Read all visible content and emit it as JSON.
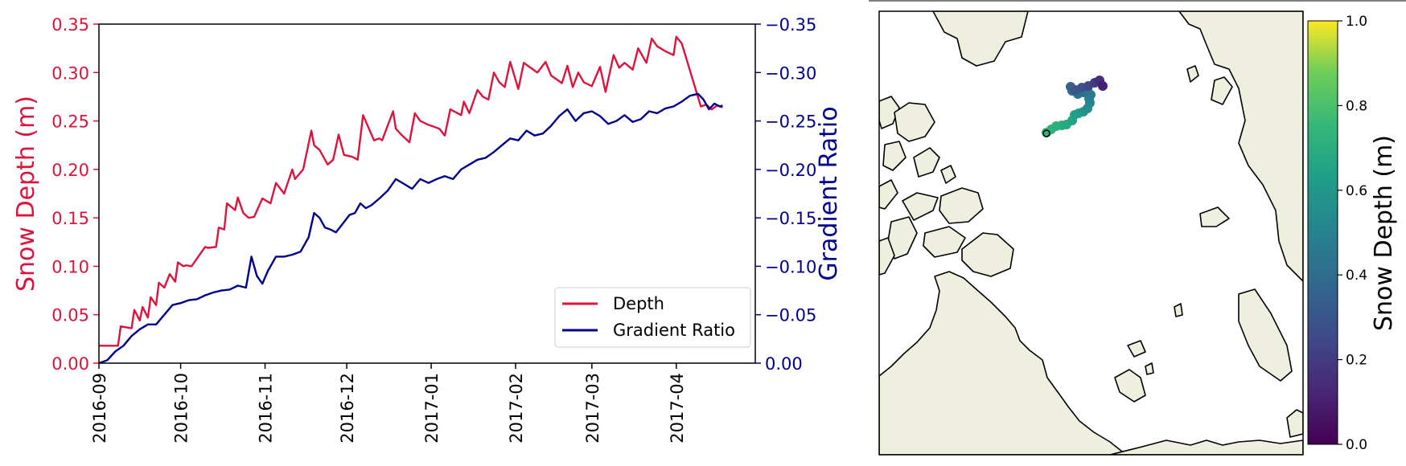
{
  "colors": {
    "depth": "#dc143c",
    "gradient": "#00008b",
    "land": "#efefdf",
    "coast": "#000000"
  },
  "chart_data": [
    {
      "type": "line",
      "x_type": "date",
      "xlim": [
        "2016-09-01",
        "2017-04-30"
      ],
      "x_ticks": [
        "2016-09",
        "2016-10",
        "2016-11",
        "2016-12",
        "2017-01",
        "2017-02",
        "2017-03",
        "2017-04"
      ],
      "y_left": {
        "label": "Snow Depth (m)",
        "lim": [
          0,
          0.35
        ],
        "ticks": [
          "0.00",
          "0.05",
          "0.10",
          "0.15",
          "0.20",
          "0.25",
          "0.30",
          "0.35"
        ]
      },
      "y_right": {
        "label": "Gradient Ratio",
        "lim": [
          0,
          -0.35
        ],
        "inverted": true,
        "ticks": [
          "0.00",
          "−0.05",
          "−0.10",
          "−0.15",
          "−0.20",
          "−0.25",
          "−0.30",
          "−0.35"
        ]
      },
      "legend": {
        "position": "lower-right",
        "entries": [
          "Depth",
          "Gradient Ratio"
        ]
      },
      "series": [
        {
          "name": "Depth",
          "axis": "left",
          "x": [
            "2016-09-01",
            "2016-09-08",
            "2016-09-09",
            "2016-09-13",
            "2016-09-14",
            "2016-09-16",
            "2016-09-17",
            "2016-09-19",
            "2016-09-20",
            "2016-09-22",
            "2016-09-23",
            "2016-09-25",
            "2016-09-27",
            "2016-09-29",
            "2016-09-30",
            "2016-10-02",
            "2016-10-03",
            "2016-10-05",
            "2016-10-10",
            "2016-10-11",
            "2016-10-14",
            "2016-10-15",
            "2016-10-17",
            "2016-10-18",
            "2016-10-21",
            "2016-10-22",
            "2016-10-24",
            "2016-10-26",
            "2016-10-28",
            "2016-10-31",
            "2016-11-03",
            "2016-11-05",
            "2016-11-08",
            "2016-11-11",
            "2016-11-12",
            "2016-11-15",
            "2016-11-18",
            "2016-11-19",
            "2016-11-21",
            "2016-11-24",
            "2016-11-26",
            "2016-11-28",
            "2016-11-30",
            "2016-12-03",
            "2016-12-05",
            "2016-12-07",
            "2016-12-11",
            "2016-12-13",
            "2016-12-14",
            "2016-12-18",
            "2016-12-19",
            "2016-12-21",
            "2016-12-24",
            "2016-12-26",
            "2016-12-28",
            "2016-12-31",
            "2017-01-02",
            "2017-01-04",
            "2017-01-06",
            "2017-01-08",
            "2017-01-12",
            "2017-01-13",
            "2017-01-15",
            "2017-01-18",
            "2017-01-20",
            "2017-01-22",
            "2017-01-24",
            "2017-01-26",
            "2017-01-28",
            "2017-01-30",
            "2017-02-02",
            "2017-02-04",
            "2017-02-06",
            "2017-02-09",
            "2017-02-12",
            "2017-02-14",
            "2017-02-18",
            "2017-02-20",
            "2017-02-22",
            "2017-02-24",
            "2017-02-26",
            "2017-03-01",
            "2017-03-04",
            "2017-03-06",
            "2017-03-09",
            "2017-03-11",
            "2017-03-13",
            "2017-03-16",
            "2017-03-18",
            "2017-03-21",
            "2017-03-23",
            "2017-03-25",
            "2017-03-28",
            "2017-03-31",
            "2017-04-01",
            "2017-04-03",
            "2017-04-10",
            "2017-04-12",
            "2017-04-14",
            "2017-04-16",
            "2017-04-18"
          ],
          "y": [
            0.018,
            0.018,
            0.038,
            0.036,
            0.055,
            0.044,
            0.058,
            0.047,
            0.068,
            0.06,
            0.083,
            0.078,
            0.092,
            0.084,
            0.104,
            0.1,
            0.101,
            0.1,
            0.12,
            0.119,
            0.12,
            0.14,
            0.138,
            0.165,
            0.158,
            0.171,
            0.155,
            0.15,
            0.151,
            0.17,
            0.165,
            0.186,
            0.175,
            0.2,
            0.19,
            0.2,
            0.24,
            0.225,
            0.22,
            0.205,
            0.21,
            0.236,
            0.215,
            0.213,
            0.21,
            0.256,
            0.23,
            0.232,
            0.23,
            0.26,
            0.242,
            0.236,
            0.228,
            0.258,
            0.25,
            0.246,
            0.244,
            0.242,
            0.235,
            0.262,
            0.256,
            0.27,
            0.258,
            0.282,
            0.275,
            0.272,
            0.3,
            0.29,
            0.285,
            0.311,
            0.283,
            0.31,
            0.306,
            0.3,
            0.311,
            0.297,
            0.289,
            0.307,
            0.285,
            0.3,
            0.29,
            0.286,
            0.306,
            0.28,
            0.318,
            0.305,
            0.31,
            0.303,
            0.325,
            0.31,
            0.335,
            0.327,
            0.322,
            0.318,
            0.337,
            0.33,
            0.265,
            0.267,
            0.262,
            0.266,
            0.264
          ]
        },
        {
          "name": "Gradient Ratio",
          "axis": "right",
          "x": [
            "2016-09-01",
            "2016-09-04",
            "2016-09-07",
            "2016-09-10",
            "2016-09-13",
            "2016-09-16",
            "2016-09-19",
            "2016-09-22",
            "2016-09-25",
            "2016-09-28",
            "2016-10-01",
            "2016-10-04",
            "2016-10-07",
            "2016-10-10",
            "2016-10-13",
            "2016-10-16",
            "2016-10-19",
            "2016-10-22",
            "2016-10-25",
            "2016-10-27",
            "2016-10-29",
            "2016-10-31",
            "2016-11-02",
            "2016-11-05",
            "2016-11-08",
            "2016-11-11",
            "2016-11-14",
            "2016-11-17",
            "2016-11-19",
            "2016-11-21",
            "2016-11-23",
            "2016-11-25",
            "2016-11-27",
            "2016-11-29",
            "2016-12-02",
            "2016-12-04",
            "2016-12-06",
            "2016-12-08",
            "2016-12-10",
            "2016-12-13",
            "2016-12-16",
            "2016-12-19",
            "2016-12-22",
            "2016-12-25",
            "2016-12-28",
            "2016-12-31",
            "2017-01-03",
            "2017-01-06",
            "2017-01-09",
            "2017-01-12",
            "2017-01-15",
            "2017-01-18",
            "2017-01-21",
            "2017-01-24",
            "2017-01-27",
            "2017-01-30",
            "2017-02-02",
            "2017-02-05",
            "2017-02-08",
            "2017-02-11",
            "2017-02-14",
            "2017-02-17",
            "2017-02-20",
            "2017-02-23",
            "2017-02-26",
            "2017-03-01",
            "2017-03-04",
            "2017-03-07",
            "2017-03-10",
            "2017-03-13",
            "2017-03-16",
            "2017-03-19",
            "2017-03-22",
            "2017-03-25",
            "2017-03-28",
            "2017-03-31",
            "2017-04-03",
            "2017-04-06",
            "2017-04-09",
            "2017-04-11",
            "2017-04-13",
            "2017-04-15",
            "2017-04-17",
            "2017-04-18"
          ],
          "y": [
            0.0,
            -0.003,
            -0.012,
            -0.018,
            -0.028,
            -0.035,
            -0.04,
            -0.04,
            -0.05,
            -0.06,
            -0.062,
            -0.065,
            -0.066,
            -0.07,
            -0.073,
            -0.075,
            -0.076,
            -0.08,
            -0.078,
            -0.11,
            -0.09,
            -0.082,
            -0.095,
            -0.11,
            -0.11,
            -0.112,
            -0.115,
            -0.13,
            -0.155,
            -0.15,
            -0.14,
            -0.138,
            -0.135,
            -0.142,
            -0.153,
            -0.155,
            -0.165,
            -0.16,
            -0.163,
            -0.17,
            -0.178,
            -0.19,
            -0.185,
            -0.18,
            -0.19,
            -0.186,
            -0.19,
            -0.193,
            -0.19,
            -0.2,
            -0.205,
            -0.21,
            -0.212,
            -0.218,
            -0.225,
            -0.232,
            -0.23,
            -0.24,
            -0.235,
            -0.237,
            -0.245,
            -0.255,
            -0.262,
            -0.25,
            -0.258,
            -0.26,
            -0.255,
            -0.247,
            -0.25,
            -0.256,
            -0.249,
            -0.252,
            -0.26,
            -0.258,
            -0.263,
            -0.265,
            -0.27,
            -0.276,
            -0.278,
            -0.272,
            -0.262,
            -0.268,
            -0.265,
            -0.266
          ]
        }
      ]
    },
    {
      "type": "scatter",
      "projection": "north-polar-stereographic",
      "colorbar": {
        "label": "Snow Depth (m)",
        "lim": [
          0.0,
          1.0
        ],
        "ticks": [
          "0.0",
          "0.2",
          "0.4",
          "0.6",
          "0.8",
          "1.0"
        ],
        "colormap": "viridis"
      },
      "track": {
        "start_marker": "black-edged circle",
        "points": [
          {
            "value": 0.72
          },
          {
            "value": 0.71
          },
          {
            "value": 0.7
          },
          {
            "value": 0.68
          },
          {
            "value": 0.66
          },
          {
            "value": 0.64
          },
          {
            "value": 0.6
          },
          {
            "value": 0.56
          },
          {
            "value": 0.52
          },
          {
            "value": 0.5
          },
          {
            "value": 0.47
          },
          {
            "value": 0.44
          },
          {
            "value": 0.41
          },
          {
            "value": 0.38
          },
          {
            "value": 0.35
          },
          {
            "value": 0.3
          },
          {
            "value": 0.25
          },
          {
            "value": 0.2
          },
          {
            "value": 0.15
          },
          {
            "value": 0.1
          }
        ]
      }
    }
  ]
}
